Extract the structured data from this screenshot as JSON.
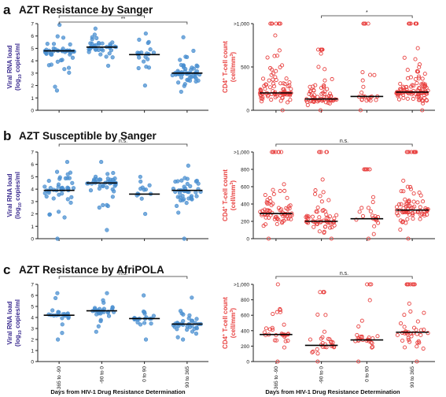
{
  "figure": {
    "x_axis_title": "Days from HIV-1 Drug Resistance Determination",
    "categories": [
      "-365 to -90",
      "-90 to 0",
      "0 to 90",
      "90 to 365"
    ],
    "colors": {
      "viral": "#4a8fd0",
      "cd4": "#e8403f",
      "viral_label": "#3d2e91",
      "cd4_label": "#e8403f"
    }
  },
  "panels": [
    {
      "letter": "a",
      "title": "AZT Resistance by Sanger"
    },
    {
      "letter": "b",
      "title": "AZT Susceptible by Sanger"
    },
    {
      "letter": "c",
      "title": "AZT Resistance by AfriPOLA"
    }
  ],
  "labels": {
    "viral_line1": "Viral RNA load",
    "viral_line2_a": "(log",
    "viral_line2_sub": "10",
    "viral_line2_b": " copies/ml",
    "cd4_line1_a": "CD4",
    "cd4_line1_sup": "+",
    "cd4_line1_b": " T-cell count",
    "cd4_line2_a": "(cell/mm",
    "cd4_line2_sup": "3",
    "cd4_line2_b": ")"
  },
  "chart_data": [
    {
      "panel": "a",
      "measure": "viral",
      "type": "scatter",
      "ylim": [
        0,
        7
      ],
      "yticks": [
        "0",
        "1",
        "2",
        "3",
        "4",
        "5",
        "6",
        "7"
      ],
      "medians": [
        4.8,
        5.1,
        4.5,
        3.0
      ],
      "counts": [
        45,
        38,
        22,
        55
      ],
      "ranges": [
        [
          1.6,
          6.9
        ],
        [
          3.6,
          6.6
        ],
        [
          2.0,
          6.2
        ],
        [
          1.5,
          5.9
        ]
      ],
      "brackets": [
        {
          "from": 0,
          "to": 2,
          "label": "*"
        },
        {
          "from": 0,
          "to": 3,
          "label": "**"
        }
      ]
    },
    {
      "panel": "a",
      "measure": "cd4",
      "type": "scatter",
      "ylim": [
        0,
        1000
      ],
      "yticks": [
        "0",
        "500",
        ">1,000"
      ],
      "medians": [
        200,
        130,
        160,
        210
      ],
      "counts": [
        95,
        75,
        25,
        110
      ],
      "ranges": [
        [
          0,
          1000
        ],
        [
          0,
          700
        ],
        [
          0,
          1000
        ],
        [
          0,
          1000
        ]
      ],
      "brackets": [
        {
          "from": 1,
          "to": 3,
          "label": "*"
        }
      ]
    },
    {
      "panel": "b",
      "measure": "viral",
      "type": "scatter",
      "ylim": [
        0,
        7
      ],
      "yticks": [
        "0",
        "1",
        "2",
        "3",
        "4",
        "5",
        "6",
        "7"
      ],
      "medians": [
        3.9,
        4.5,
        3.6,
        3.9
      ],
      "counts": [
        45,
        42,
        13,
        42
      ],
      "ranges": [
        [
          0,
          6.2
        ],
        [
          0.7,
          6.2
        ],
        [
          2.0,
          5.0
        ],
        [
          0,
          5.9
        ]
      ],
      "brackets": [
        {
          "from": 0,
          "to": 3,
          "label": "n.s."
        }
      ]
    },
    {
      "panel": "b",
      "measure": "cd4",
      "type": "scatter",
      "ylim": [
        0,
        1000
      ],
      "yticks": [
        "0",
        "200",
        "400",
        "600",
        "800",
        ">1,000"
      ],
      "medians": [
        290,
        200,
        230,
        330
      ],
      "counts": [
        75,
        62,
        27,
        85
      ],
      "ranges": [
        [
          0,
          1000
        ],
        [
          0,
          1000
        ],
        [
          0,
          800
        ],
        [
          0,
          1000
        ]
      ],
      "brackets": [
        {
          "from": 0,
          "to": 3,
          "label": "n.s."
        }
      ]
    },
    {
      "panel": "c",
      "measure": "viral",
      "type": "scatter",
      "ylim": [
        0,
        7
      ],
      "yticks": [
        "0",
        "1",
        "2",
        "3",
        "4",
        "5",
        "6",
        "7"
      ],
      "medians": [
        4.2,
        4.6,
        3.9,
        3.4
      ],
      "counts": [
        22,
        30,
        22,
        35
      ],
      "ranges": [
        [
          2.0,
          6.2
        ],
        [
          2.7,
          6.2
        ],
        [
          2.0,
          6.0
        ],
        [
          2.0,
          5.8
        ]
      ],
      "brackets": [
        {
          "from": 0,
          "to": 3,
          "label": "n.s."
        }
      ]
    },
    {
      "panel": "c",
      "measure": "cd4",
      "type": "scatter",
      "ylim": [
        0,
        1000
      ],
      "yticks": [
        "0",
        "200",
        "400",
        "600",
        "800",
        ">1,000"
      ],
      "medians": [
        350,
        210,
        280,
        380
      ],
      "counts": [
        30,
        30,
        28,
        45
      ],
      "ranges": [
        [
          0,
          1000
        ],
        [
          0,
          900
        ],
        [
          0,
          1000
        ],
        [
          0,
          1000
        ]
      ],
      "brackets": [
        {
          "from": 0,
          "to": 3,
          "label": "n.s."
        }
      ]
    }
  ]
}
